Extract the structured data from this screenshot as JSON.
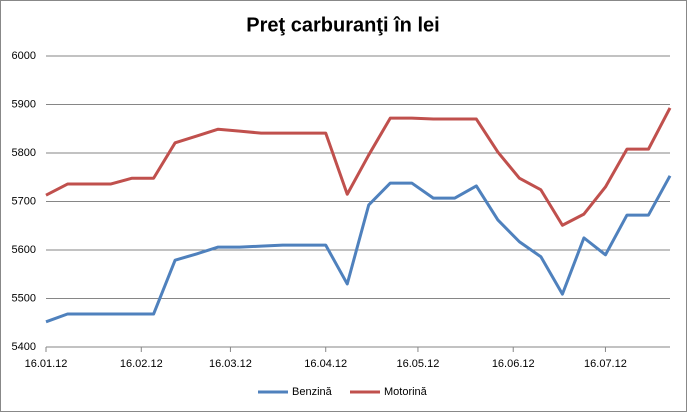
{
  "chart_data": {
    "type": "line",
    "title": "Preţ carburanţi în lei",
    "x": [
      0,
      7,
      14,
      21,
      28,
      35,
      42,
      49,
      56,
      63,
      70,
      77,
      84,
      91,
      98,
      105,
      112,
      119,
      126,
      133,
      140,
      147,
      154,
      161,
      168,
      175,
      182,
      189,
      196,
      203
    ],
    "xlim": [
      0,
      203
    ],
    "xticks": [
      {
        "value": 0,
        "label": "16.01.12"
      },
      {
        "value": 31,
        "label": "16.02.12"
      },
      {
        "value": 60,
        "label": "16.03.12"
      },
      {
        "value": 91,
        "label": "16.04.12"
      },
      {
        "value": 121,
        "label": "16.05.12"
      },
      {
        "value": 152,
        "label": "16.06.12"
      },
      {
        "value": 182,
        "label": "16.07.12"
      }
    ],
    "ylim": [
      5400,
      6000
    ],
    "yticks": [
      5400,
      5500,
      5600,
      5700,
      5800,
      5900,
      6000
    ],
    "grid": true,
    "legend": "bottom",
    "series": [
      {
        "name": "Benzină",
        "color": "#4f81bd",
        "values": [
          5452,
          5468,
          5468,
          5468,
          5468,
          5468,
          5579,
          5592,
          5606,
          5606,
          5608,
          5610,
          5610,
          5610,
          5530,
          5693,
          5738,
          5738,
          5707,
          5707,
          5732,
          5662,
          5617,
          5586,
          5509,
          5625,
          5590,
          5672,
          5672,
          5753
        ]
      },
      {
        "name": "Motorină",
        "color": "#c0504d",
        "values": [
          5713,
          5736,
          5736,
          5736,
          5748,
          5748,
          5821,
          5835,
          5849,
          5845,
          5841,
          5841,
          5841,
          5841,
          5715,
          5796,
          5872,
          5872,
          5870,
          5870,
          5870,
          5802,
          5748,
          5724,
          5651,
          5674,
          5730,
          5808,
          5808,
          5893
        ]
      }
    ]
  }
}
